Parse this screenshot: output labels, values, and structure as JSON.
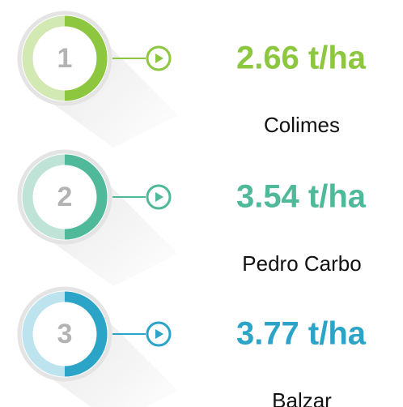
{
  "items": [
    {
      "number": "1",
      "value": "2.66 t/ha",
      "name": "Colimes",
      "color": "#8dc63f",
      "light": "#d3e9b3"
    },
    {
      "number": "2",
      "value": "3.54 t/ha",
      "name": "Pedro Carbo",
      "color": "#4fb999",
      "light": "#bfe3d6"
    },
    {
      "number": "3",
      "value": "3.77 t/ha",
      "name": "Balzar",
      "color": "#2ba4c8",
      "light": "#bde3ef"
    }
  ]
}
